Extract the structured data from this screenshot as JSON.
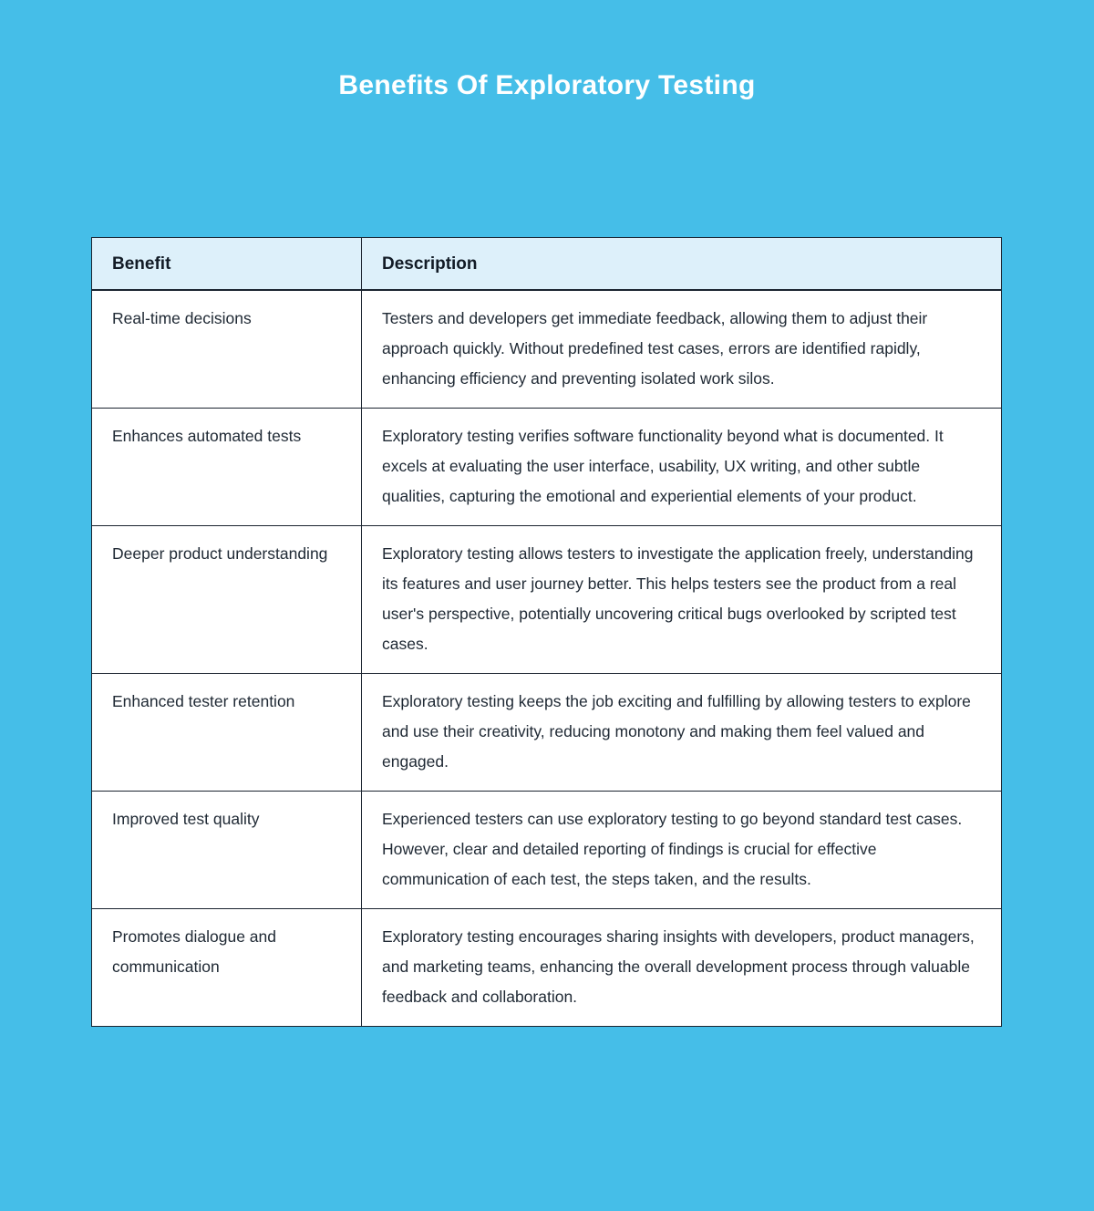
{
  "page": {
    "title": "Benefits Of Exploratory Testing"
  },
  "colors": {
    "page_background": "#45BEE8",
    "title_color": "#FFFFFF",
    "header_background": "#DDF0FA",
    "cell_background": "#FFFFFF",
    "border_color": "#1B2430",
    "body_text_color": "#202A35"
  },
  "table": {
    "columns": [
      "Benefit",
      "Description"
    ],
    "rows": [
      {
        "benefit": "Real-time decisions",
        "description": "Testers and developers get immediate feedback, allowing them to adjust their approach quickly. Without predefined test cases, errors are identified rapidly, enhancing efficiency and preventing isolated work silos."
      },
      {
        "benefit": "Enhances automated tests",
        "description": "Exploratory testing verifies software functionality beyond what is documented. It excels at evaluating the user interface, usability, UX writing, and other subtle qualities, capturing the emotional and experiential elements of your product."
      },
      {
        "benefit": "Deeper product understanding",
        "description": "Exploratory testing allows testers to investigate the application freely, understanding its features and user journey better. This helps testers see the product from a real user's perspective, potentially uncovering critical bugs overlooked by scripted test cases."
      },
      {
        "benefit": "Enhanced tester retention",
        "description": "Exploratory testing keeps the job exciting and fulfilling by allowing testers to explore and use their creativity, reducing monotony and making them feel valued and engaged."
      },
      {
        "benefit": "Improved test quality",
        "description": "Experienced testers can use exploratory testing to go beyond standard test cases. However, clear and detailed reporting of findings is crucial for effective communication of each test, the steps taken, and the results."
      },
      {
        "benefit": "Promotes dialogue and communication",
        "description": "Exploratory testing encourages sharing insights with developers, product managers, and marketing teams, enhancing the overall development process through valuable feedback and collaboration."
      }
    ]
  }
}
